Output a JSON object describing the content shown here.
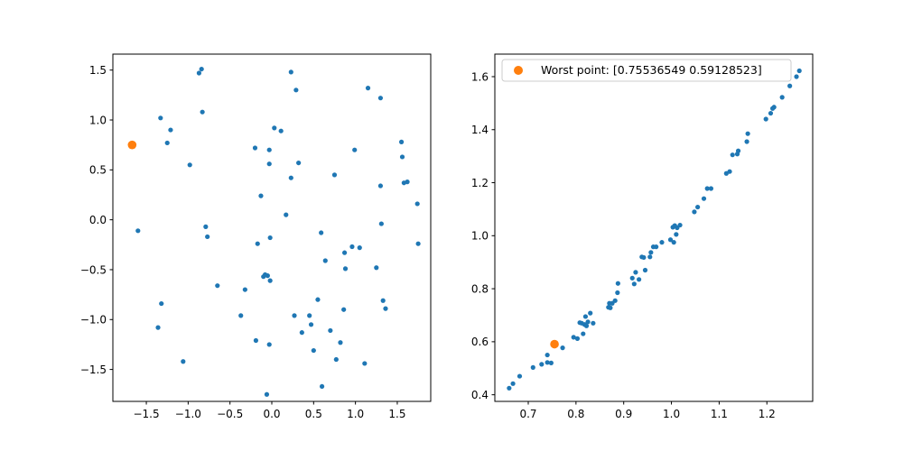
{
  "chart_data": [
    {
      "type": "scatter",
      "xlim": [
        -1.9,
        1.9
      ],
      "ylim": [
        -1.82,
        1.66
      ],
      "xticks": [
        "-1.5",
        "-1.0",
        "-0.5",
        "0.0",
        "0.5",
        "1.0",
        "1.5"
      ],
      "yticks": [
        "-1.5",
        "-1.0",
        "-0.5",
        "0.0",
        "0.5",
        "1.0",
        "1.5"
      ],
      "grid": false,
      "series": [
        {
          "color": "#1f77b4",
          "points": [
            [
              -0.87,
              1.47
            ],
            [
              -0.84,
              1.51
            ],
            [
              -0.83,
              1.08
            ],
            [
              -1.33,
              1.02
            ],
            [
              -1.21,
              0.9
            ],
            [
              -1.25,
              0.77
            ],
            [
              -0.98,
              0.55
            ],
            [
              -1.6,
              -0.11
            ],
            [
              -0.79,
              -0.07
            ],
            [
              -0.77,
              -0.17
            ],
            [
              -1.32,
              -0.84
            ],
            [
              -1.36,
              -1.08
            ],
            [
              -1.06,
              -1.42
            ],
            [
              -0.65,
              -0.66
            ],
            [
              -0.37,
              -0.96
            ],
            [
              -0.32,
              -0.7
            ],
            [
              -0.2,
              0.72
            ],
            [
              -0.17,
              -0.24
            ],
            [
              -0.13,
              0.24
            ],
            [
              -0.1,
              -0.57
            ],
            [
              -0.08,
              -0.55
            ],
            [
              -0.05,
              -0.56
            ],
            [
              -0.03,
              0.7
            ],
            [
              -0.03,
              0.56
            ],
            [
              -0.02,
              -0.18
            ],
            [
              -0.02,
              -0.61
            ],
            [
              -0.19,
              -1.21
            ],
            [
              -0.03,
              -1.25
            ],
            [
              -0.06,
              -1.75
            ],
            [
              0.03,
              0.92
            ],
            [
              0.11,
              0.89
            ],
            [
              0.17,
              0.05
            ],
            [
              0.23,
              0.42
            ],
            [
              0.23,
              1.48
            ],
            [
              0.27,
              -0.96
            ],
            [
              0.29,
              1.3
            ],
            [
              0.32,
              0.57
            ],
            [
              0.36,
              -1.13
            ],
            [
              0.45,
              -0.96
            ],
            [
              0.47,
              -1.05
            ],
            [
              0.5,
              -1.31
            ],
            [
              0.55,
              -0.8
            ],
            [
              0.59,
              -0.13
            ],
            [
              0.6,
              -1.67
            ],
            [
              0.64,
              -0.41
            ],
            [
              0.7,
              -1.11
            ],
            [
              0.75,
              0.45
            ],
            [
              0.77,
              -1.4
            ],
            [
              0.82,
              -1.23
            ],
            [
              0.86,
              -0.9
            ],
            [
              0.87,
              -0.33
            ],
            [
              0.88,
              -0.49
            ],
            [
              0.96,
              -0.27
            ],
            [
              0.99,
              0.7
            ],
            [
              1.05,
              -0.28
            ],
            [
              1.11,
              -1.44
            ],
            [
              1.15,
              1.32
            ],
            [
              1.25,
              -0.48
            ],
            [
              1.3,
              1.22
            ],
            [
              1.3,
              0.34
            ],
            [
              1.31,
              -0.04
            ],
            [
              1.33,
              -0.81
            ],
            [
              1.36,
              -0.89
            ],
            [
              1.55,
              0.78
            ],
            [
              1.56,
              0.63
            ],
            [
              1.58,
              0.37
            ],
            [
              1.62,
              0.38
            ],
            [
              1.74,
              0.16
            ],
            [
              1.75,
              -0.24
            ]
          ]
        },
        {
          "color": "#ff7f0e",
          "points": [
            [
              -1.67,
              0.75
            ]
          ]
        }
      ]
    },
    {
      "type": "scatter",
      "xlim": [
        0.63,
        1.296
      ],
      "ylim": [
        0.375,
        1.685
      ],
      "xticks": [
        "0.7",
        "0.8",
        "0.9",
        "1.0",
        "1.1",
        "1.2"
      ],
      "yticks": [
        "0.4",
        "0.6",
        "0.8",
        "1.0",
        "1.2",
        "1.4",
        "1.6"
      ],
      "grid": false,
      "legend": {
        "placement": "upper-left",
        "entries": [
          {
            "label": "Worst point: [0.75536549 0.59128523]",
            "color": "#ff7f0e"
          }
        ]
      },
      "series": [
        {
          "color": "#1f77b4",
          "points": [
            [
              0.66,
              0.425
            ],
            [
              0.668,
              0.442
            ],
            [
              0.682,
              0.47
            ],
            [
              0.71,
              0.503
            ],
            [
              0.728,
              0.515
            ],
            [
              0.74,
              0.522
            ],
            [
              0.74,
              0.55
            ],
            [
              0.748,
              0.52
            ],
            [
              0.772,
              0.577
            ],
            [
              0.795,
              0.617
            ],
            [
              0.803,
              0.612
            ],
            [
              0.808,
              0.672
            ],
            [
              0.812,
              0.67
            ],
            [
              0.815,
              0.63
            ],
            [
              0.818,
              0.665
            ],
            [
              0.82,
              0.695
            ],
            [
              0.822,
              0.66
            ],
            [
              0.825,
              0.675
            ],
            [
              0.83,
              0.708
            ],
            [
              0.836,
              0.67
            ],
            [
              0.868,
              0.73
            ],
            [
              0.87,
              0.745
            ],
            [
              0.872,
              0.728
            ],
            [
              0.876,
              0.745
            ],
            [
              0.882,
              0.755
            ],
            [
              0.887,
              0.785
            ],
            [
              0.888,
              0.82
            ],
            [
              0.918,
              0.84
            ],
            [
              0.922,
              0.818
            ],
            [
              0.925,
              0.862
            ],
            [
              0.932,
              0.835
            ],
            [
              0.938,
              0.92
            ],
            [
              0.942,
              0.918
            ],
            [
              0.945,
              0.87
            ],
            [
              0.955,
              0.92
            ],
            [
              0.957,
              0.937
            ],
            [
              0.962,
              0.958
            ],
            [
              0.968,
              0.958
            ],
            [
              0.98,
              0.975
            ],
            [
              0.998,
              0.985
            ],
            [
              1.003,
              1.032
            ],
            [
              1.005,
              0.975
            ],
            [
              1.007,
              1.038
            ],
            [
              1.01,
              1.005
            ],
            [
              1.012,
              1.03
            ],
            [
              1.018,
              1.04
            ],
            [
              1.048,
              1.09
            ],
            [
              1.055,
              1.108
            ],
            [
              1.068,
              1.14
            ],
            [
              1.075,
              1.178
            ],
            [
              1.083,
              1.178
            ],
            [
              1.115,
              1.235
            ],
            [
              1.122,
              1.242
            ],
            [
              1.128,
              1.305
            ],
            [
              1.138,
              1.308
            ],
            [
              1.14,
              1.32
            ],
            [
              1.158,
              1.355
            ],
            [
              1.16,
              1.385
            ],
            [
              1.198,
              1.44
            ],
            [
              1.208,
              1.462
            ],
            [
              1.212,
              1.48
            ],
            [
              1.215,
              1.485
            ],
            [
              1.232,
              1.522
            ],
            [
              1.248,
              1.565
            ],
            [
              1.262,
              1.6
            ],
            [
              1.268,
              1.622
            ]
          ]
        },
        {
          "color": "#ff7f0e",
          "points": [
            [
              0.755,
              0.591
            ]
          ]
        }
      ]
    }
  ]
}
